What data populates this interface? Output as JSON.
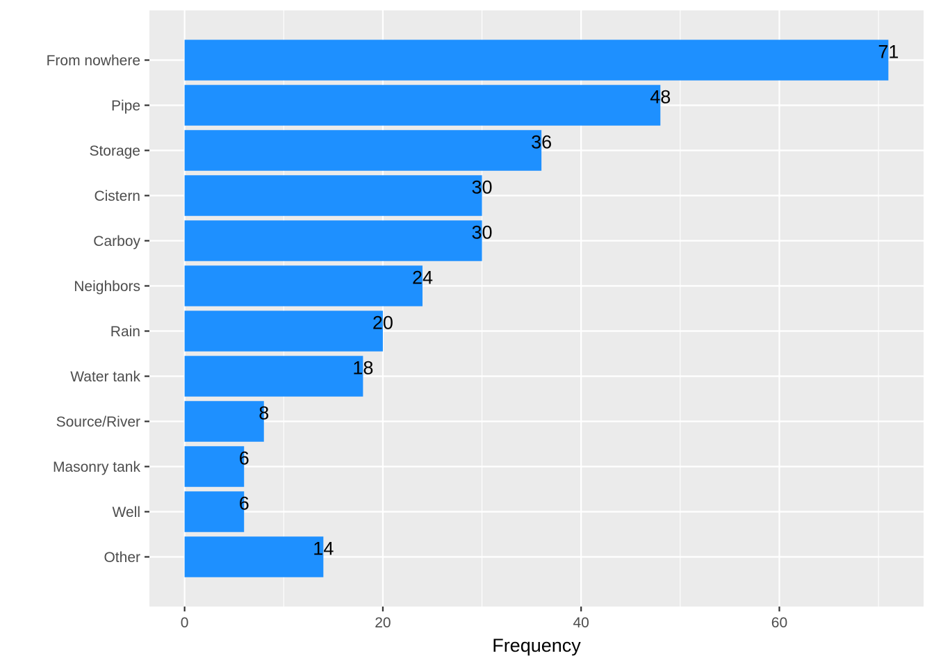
{
  "chart_data": {
    "type": "bar",
    "orientation": "horizontal",
    "categories": [
      "From nowhere",
      "Pipe",
      "Storage",
      "Cistern",
      "Carboy",
      "Neighbors",
      "Rain",
      "Water tank",
      "Source/River",
      "Masonry tank",
      "Well",
      "Other"
    ],
    "values": [
      71,
      48,
      36,
      30,
      30,
      24,
      20,
      18,
      8,
      6,
      6,
      14
    ],
    "data_labels": [
      "71",
      "48",
      "36",
      "30",
      "30",
      "24",
      "20",
      "18",
      "8",
      "6",
      "6",
      "14"
    ],
    "title": "",
    "xlabel": "Frequency",
    "ylabel": "",
    "xlim": [
      -3.55,
      74.55
    ],
    "x_ticks": [
      0,
      20,
      40,
      60
    ],
    "x_tick_labels": [
      "0",
      "20",
      "40",
      "60"
    ],
    "grid": true,
    "legend": "none",
    "colors": {
      "bar": "#1E90FF",
      "panel_background": "#EBEBEB",
      "grid": "#FFFFFF",
      "tick_text": "#4D4D4D",
      "title_text": "#000000"
    }
  }
}
